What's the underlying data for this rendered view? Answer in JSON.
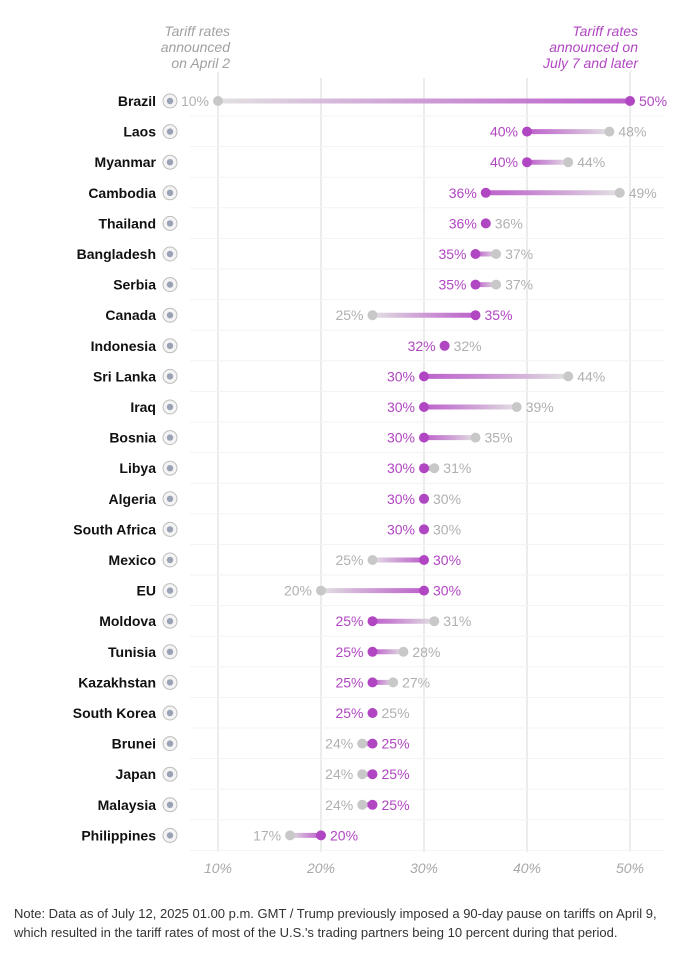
{
  "chart_data": {
    "type": "dumbbell",
    "header_left": [
      "Tariff rates",
      "announced",
      "on April 2"
    ],
    "header_right": [
      "Tariff rates",
      "announced on",
      "July 7 and later"
    ],
    "xlim": [
      10,
      50
    ],
    "x_ticks": [
      "10%",
      "20%",
      "30%",
      "40%",
      "50%"
    ],
    "x_tick_values": [
      10,
      20,
      30,
      40,
      50
    ],
    "grid": true,
    "series": [
      {
        "name": "Tariff rates announced on April 2",
        "color": "#c8c8c8"
      },
      {
        "name": "Tariff rates announced on July 7 and later",
        "color": "#b146c2"
      }
    ],
    "rows": [
      {
        "country": "Brazil",
        "april": 10,
        "july": 50,
        "flag": "brazil-flag-icon"
      },
      {
        "country": "Laos",
        "april": 48,
        "july": 40,
        "flag": "laos-flag-icon"
      },
      {
        "country": "Myanmar",
        "april": 44,
        "july": 40,
        "flag": "myanmar-flag-icon"
      },
      {
        "country": "Cambodia",
        "april": 49,
        "july": 36,
        "flag": "cambodia-flag-icon"
      },
      {
        "country": "Thailand",
        "april": 36,
        "july": 36,
        "flag": "thailand-flag-icon"
      },
      {
        "country": "Bangladesh",
        "april": 37,
        "july": 35,
        "flag": "bangladesh-flag-icon"
      },
      {
        "country": "Serbia",
        "april": 37,
        "july": 35,
        "flag": "serbia-flag-icon"
      },
      {
        "country": "Canada",
        "april": 25,
        "july": 35,
        "flag": "canada-flag-icon"
      },
      {
        "country": "Indonesia",
        "april": 32,
        "july": 32,
        "flag": "indonesia-flag-icon"
      },
      {
        "country": "Sri Lanka",
        "april": 44,
        "july": 30,
        "flag": "sri-lanka-flag-icon"
      },
      {
        "country": "Iraq",
        "april": 39,
        "july": 30,
        "flag": "iraq-flag-icon"
      },
      {
        "country": "Bosnia",
        "april": 35,
        "july": 30,
        "flag": "bosnia-flag-icon"
      },
      {
        "country": "Libya",
        "april": 31,
        "july": 30,
        "flag": "libya-flag-icon"
      },
      {
        "country": "Algeria",
        "april": 30,
        "july": 30,
        "flag": "algeria-flag-icon"
      },
      {
        "country": "South Africa",
        "april": 30,
        "july": 30,
        "flag": "south-africa-flag-icon"
      },
      {
        "country": "Mexico",
        "april": 25,
        "july": 30,
        "flag": "mexico-flag-icon"
      },
      {
        "country": "EU",
        "april": 20,
        "july": 30,
        "flag": "eu-flag-icon"
      },
      {
        "country": "Moldova",
        "april": 31,
        "july": 25,
        "flag": "moldova-flag-icon"
      },
      {
        "country": "Tunisia",
        "april": 28,
        "july": 25,
        "flag": "tunisia-flag-icon"
      },
      {
        "country": "Kazakhstan",
        "april": 27,
        "july": 25,
        "flag": "kazakhstan-flag-icon"
      },
      {
        "country": "South Korea",
        "april": 25,
        "july": 25,
        "flag": "south-korea-flag-icon"
      },
      {
        "country": "Brunei",
        "april": 24,
        "july": 25,
        "flag": "brunei-flag-icon"
      },
      {
        "country": "Japan",
        "april": 24,
        "july": 25,
        "flag": "japan-flag-icon"
      },
      {
        "country": "Malaysia",
        "april": 24,
        "july": 25,
        "flag": "malaysia-flag-icon"
      },
      {
        "country": "Philippines",
        "april": 17,
        "july": 20,
        "flag": "philippines-flag-icon"
      }
    ]
  },
  "note": "Note: Data as of July 12, 2025 01.00 p.m. GMT / Trump previously imposed a 90-day pause on tariffs on April 9, which resulted in the tariff rates of most of the U.S.'s trading partners being 10 percent during that period."
}
